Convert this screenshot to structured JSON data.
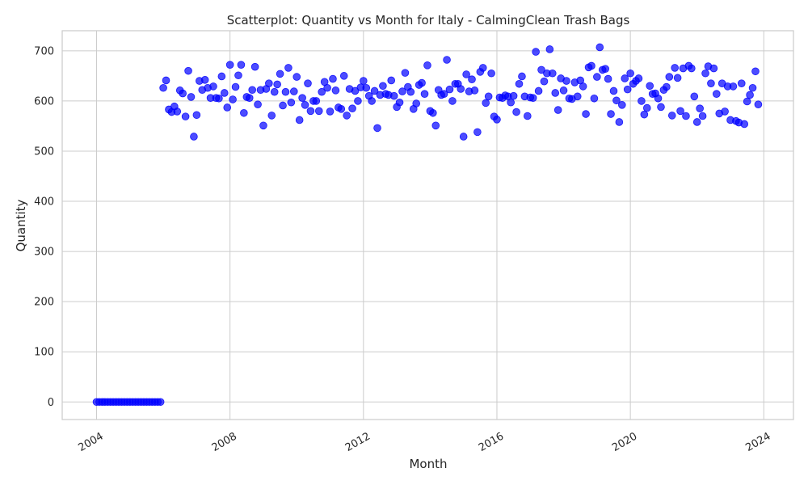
{
  "chart_data": {
    "type": "scatter",
    "title": "Scatterplot: Quantity vs Month for Italy - CalmingClean Trash Bags",
    "xlabel": "Month",
    "ylabel": "Quantity",
    "x_start": "2004-01",
    "x_end": "2023-12",
    "x_ticks": [
      "2004",
      "2008",
      "2012",
      "2016",
      "2020",
      "2024"
    ],
    "y_ticks": [
      0,
      100,
      200,
      300,
      400,
      500,
      600,
      700
    ],
    "ylim": [
      -35,
      740
    ],
    "grid": true,
    "marker_color": "#0000ff",
    "values": [
      0,
      0,
      0,
      0,
      0,
      0,
      0,
      0,
      0,
      0,
      0,
      0,
      0,
      0,
      0,
      0,
      0,
      0,
      0,
      0,
      0,
      0,
      0,
      0,
      626,
      641,
      583,
      578,
      589,
      579,
      621,
      615,
      569,
      660,
      608,
      529,
      572,
      640,
      622,
      642,
      626,
      606,
      629,
      606,
      605,
      649,
      616,
      587,
      672,
      603,
      628,
      651,
      672,
      576,
      608,
      606,
      622,
      668,
      593,
      622,
      551,
      624,
      635,
      571,
      618,
      633,
      654,
      591,
      618,
      666,
      597,
      619,
      648,
      562,
      606,
      592,
      635,
      580,
      600,
      600,
      580,
      618,
      638,
      626,
      579,
      644,
      621,
      587,
      584,
      650,
      571,
      624,
      585,
      620,
      600,
      627,
      640,
      626,
      610,
      600,
      620,
      546,
      612,
      630,
      614,
      612,
      641,
      610,
      588,
      597,
      619,
      656,
      628,
      618,
      584,
      595,
      632,
      636,
      614,
      671,
      580,
      576,
      551,
      622,
      612,
      614,
      682,
      623,
      600,
      634,
      634,
      624,
      529,
      653,
      619,
      643,
      621,
      538,
      658,
      666,
      596,
      609,
      655,
      569,
      563,
      607,
      606,
      611,
      609,
      597,
      610,
      578,
      634,
      649,
      609,
      570,
      607,
      606,
      698,
      620,
      662,
      639,
      655,
      703,
      655,
      616,
      582,
      645,
      621,
      640,
      605,
      604,
      637,
      609,
      641,
      629,
      574,
      667,
      670,
      605,
      648,
      707,
      662,
      664,
      644,
      574,
      620,
      601,
      558,
      592,
      645,
      623,
      655,
      634,
      640,
      645,
      600,
      573,
      586,
      630,
      614,
      615,
      605,
      588,
      622,
      628,
      648,
      571,
      666,
      646,
      580,
      665,
      570,
      670,
      665,
      609,
      558,
      585,
      570,
      655,
      669,
      635,
      665,
      614,
      575,
      635,
      579,
      629,
      562,
      629,
      560,
      557,
      635,
      554,
      599,
      612,
      626,
      659,
      593
    ]
  }
}
